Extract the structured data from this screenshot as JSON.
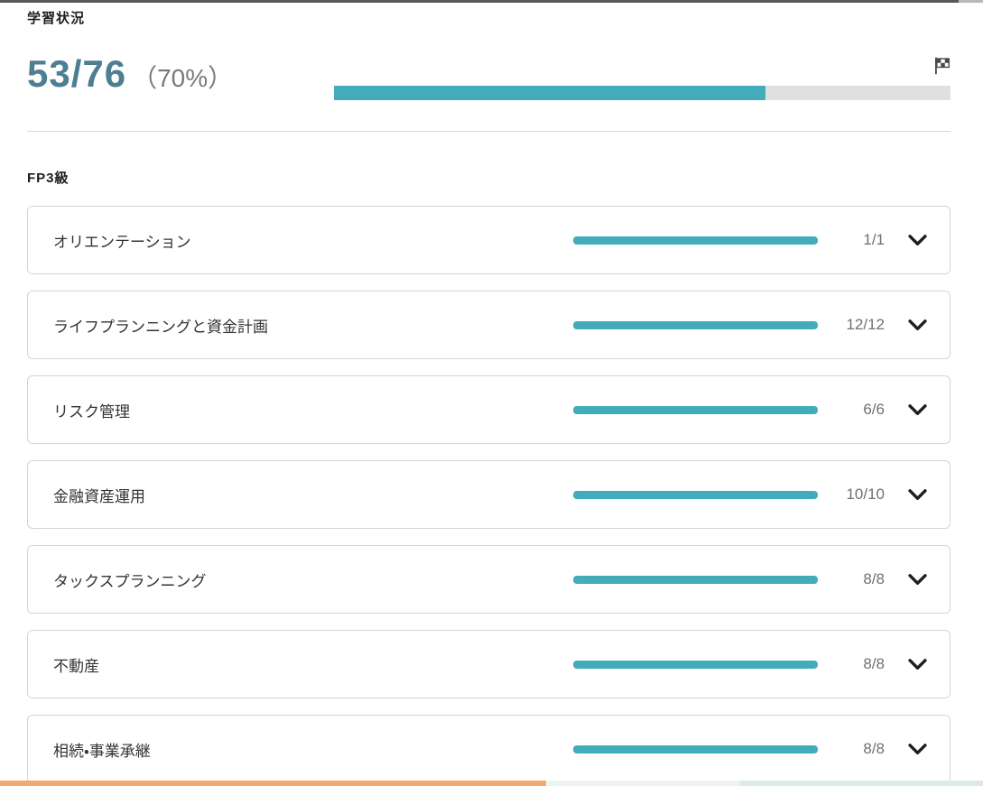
{
  "page_title": "学習状況",
  "overall": {
    "completed": 53,
    "total": 76,
    "fraction_label": "53/76",
    "percent": 70,
    "percent_label": "（70%）",
    "goal_icon": "checkered-flag-icon"
  },
  "section": {
    "title": "FP3級",
    "items": [
      {
        "label": "オリエンテーション",
        "value": "1/1",
        "percent": 100
      },
      {
        "label": "ライフプランニングと資金計画",
        "value": "12/12",
        "percent": 100
      },
      {
        "label": "リスク管理",
        "value": "6/6",
        "percent": 100
      },
      {
        "label": "金融資産運用",
        "value": "10/10",
        "percent": 100
      },
      {
        "label": "タックスプランニング",
        "value": "8/8",
        "percent": 100
      },
      {
        "label": "不動産",
        "value": "8/8",
        "percent": 100
      },
      {
        "label": "相続・事業承継",
        "value": "8/8",
        "percent": 100
      }
    ]
  },
  "colors": {
    "accent_teal": "#43acba",
    "track_gray": "#e0e0e0",
    "big_number": "#4d7e91",
    "muted_text": "#7a7a7a",
    "value_text": "#707070",
    "card_border": "#d5d5d5",
    "divider": "#d9d9de",
    "bottom_strip_orange": "#f2a96b",
    "bottom_strip_pale_1": "#edf4ef",
    "bottom_strip_pale_2": "#dcebe3"
  }
}
